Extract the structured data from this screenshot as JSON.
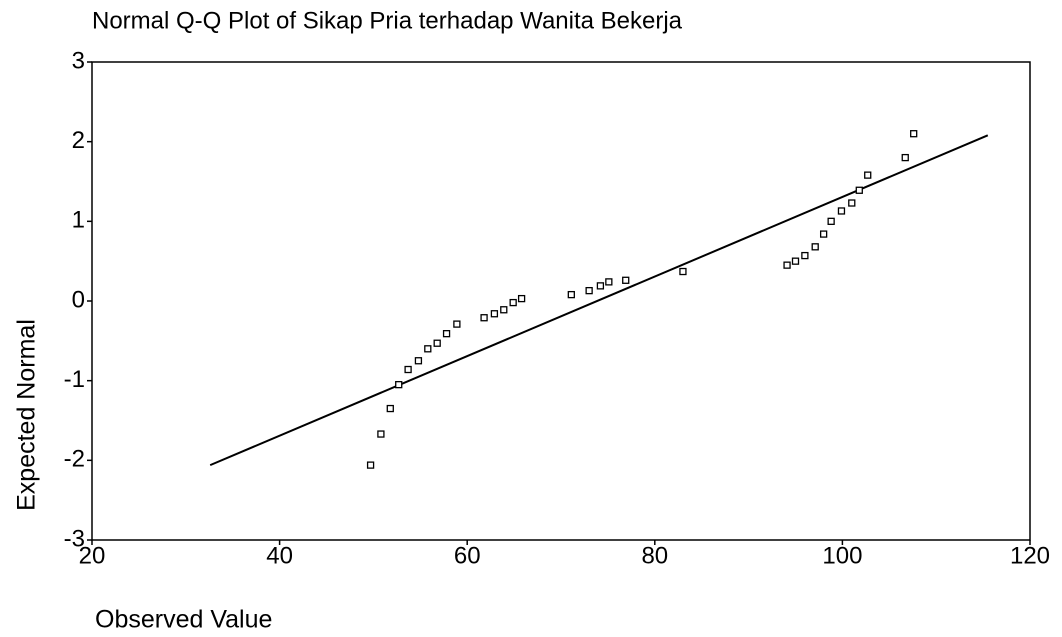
{
  "chart_data": {
    "type": "scatter",
    "title": "Normal Q-Q Plot of Sikap Pria terhadap Wanita Bekerja",
    "x_label": "Observed Value",
    "y_label": "Expected Normal",
    "x": [
      49.7,
      50.8,
      51.8,
      52.7,
      53.7,
      54.8,
      55.8,
      56.8,
      57.8,
      58.9,
      61.8,
      62.9,
      63.9,
      64.9,
      65.8,
      71.1,
      73.0,
      74.2,
      75.1,
      76.9,
      83.0,
      94.1,
      95.0,
      96.0,
      97.1,
      98.0,
      98.8,
      99.9,
      101.0,
      101.8,
      102.7,
      106.7,
      107.6
    ],
    "values": [
      -2.06,
      -1.67,
      -1.35,
      -1.05,
      -0.86,
      -0.75,
      -0.6,
      -0.53,
      -0.41,
      -0.29,
      -0.21,
      -0.16,
      -0.11,
      -0.02,
      0.03,
      0.08,
      0.13,
      0.19,
      0.24,
      0.26,
      0.37,
      0.45,
      0.5,
      0.57,
      0.68,
      0.84,
      1.0,
      1.13,
      1.23,
      1.39,
      1.58,
      1.8,
      2.1
    ],
    "color": "#000000",
    "reference_line": {
      "x": [
        32.6,
        115.5
      ],
      "y": [
        -2.06,
        2.08
      ]
    },
    "xlim": [
      20,
      120
    ],
    "xticks": [
      20,
      40,
      60,
      80,
      100,
      120
    ],
    "ylim": [
      -3,
      3
    ],
    "yticks": [
      -3,
      -2,
      -1,
      0,
      1,
      2,
      3
    ]
  }
}
